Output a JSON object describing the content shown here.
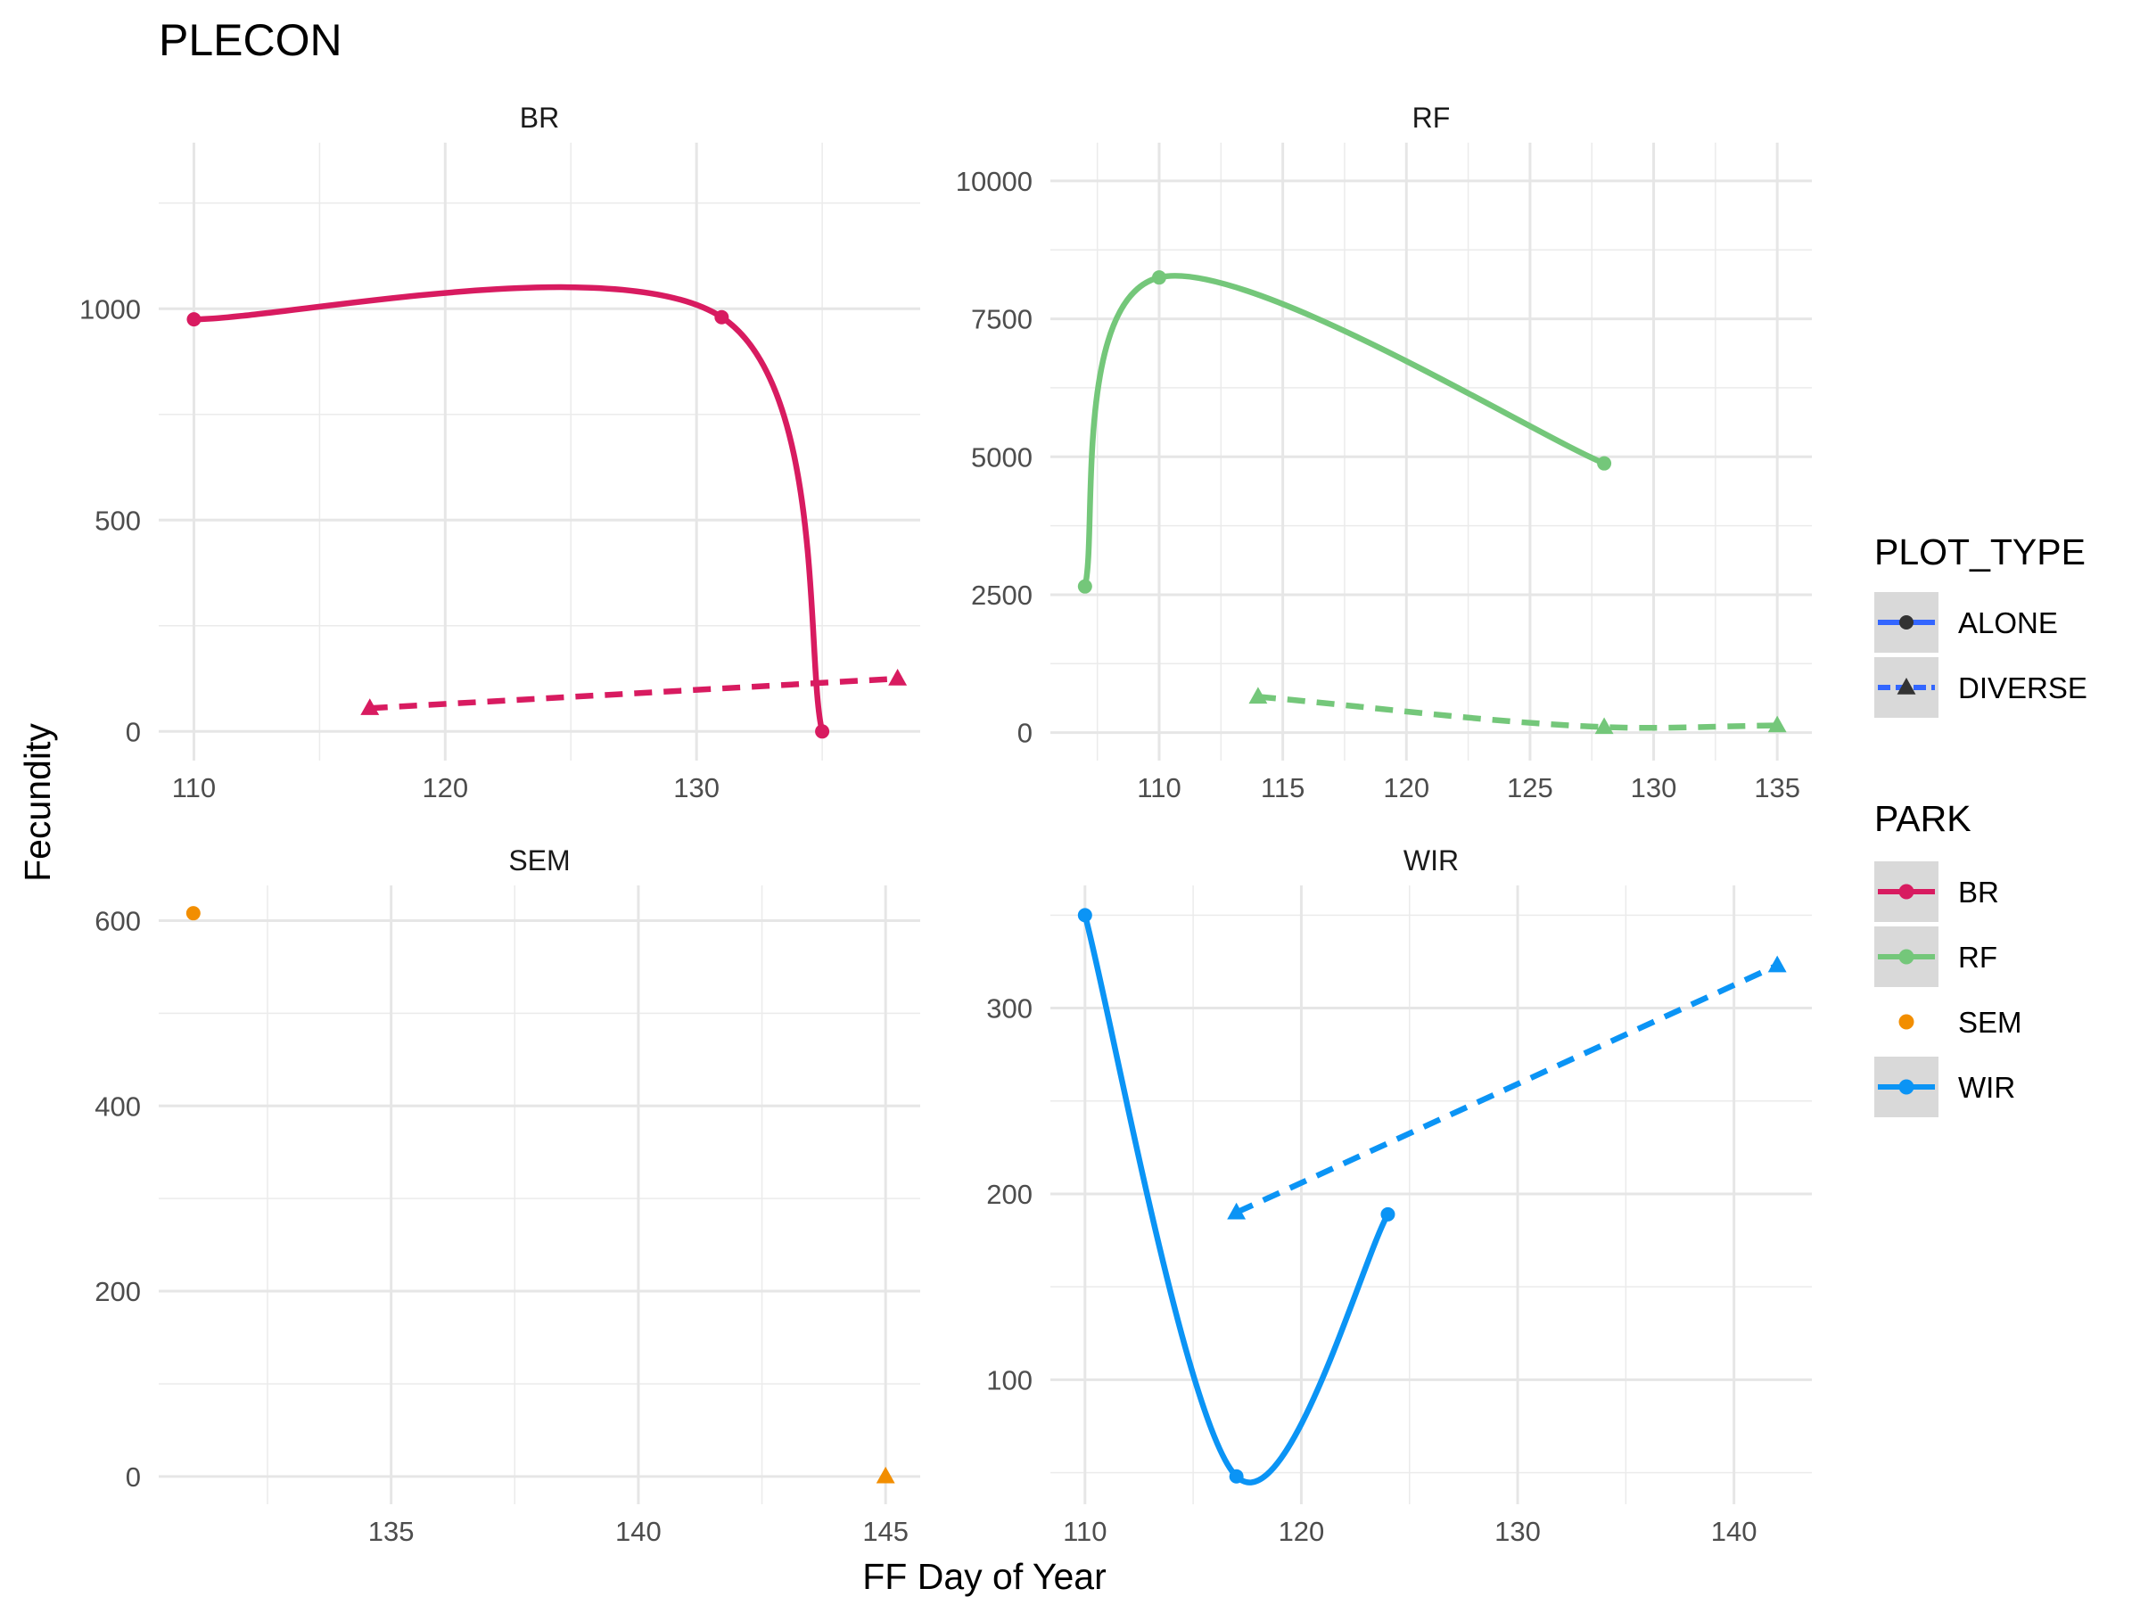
{
  "chart_data": {
    "type": "line",
    "title": "PLECON",
    "xlabel": "FF Day of Year",
    "ylabel": "Fecundity",
    "grid": true,
    "facets": [
      {
        "name": "BR",
        "xlim": [
          108.6,
          138.9
        ],
        "ylim": [
          -69,
          1393
        ],
        "x_major_ticks": [
          110,
          120,
          130
        ],
        "x_minor_ticks": [
          115,
          125,
          135
        ],
        "y_major_ticks": [
          0,
          500,
          1000
        ],
        "y_minor_ticks": [
          250,
          750,
          1250
        ],
        "series": [
          {
            "plot_type": "ALONE",
            "park": "BR",
            "color": "#d81b60",
            "smooth": true,
            "points": [
              [
                110,
                975
              ],
              [
                131,
                980
              ],
              [
                135,
                0
              ]
            ]
          },
          {
            "plot_type": "DIVERSE",
            "park": "BR",
            "color": "#d81b60",
            "smooth": true,
            "points": [
              [
                117,
                55
              ],
              [
                138,
                125
              ]
            ]
          }
        ]
      },
      {
        "name": "RF",
        "xlim": [
          105.6,
          136.4
        ],
        "ylim": [
          -507,
          10693
        ],
        "x_major_ticks": [
          110,
          115,
          120,
          125,
          130,
          135
        ],
        "x_minor_ticks": [
          107.5,
          112.5,
          117.5,
          122.5,
          127.5,
          132.5
        ],
        "y_major_ticks": [
          0,
          2500,
          5000,
          7500,
          10000
        ],
        "y_minor_ticks": [
          1250,
          3750,
          6250,
          8750
        ],
        "series": [
          {
            "plot_type": "ALONE",
            "park": "RF",
            "color": "#74c77a",
            "smooth": true,
            "points": [
              [
                107,
                2650
              ],
              [
                110,
                8250
              ],
              [
                128,
                4880
              ]
            ]
          },
          {
            "plot_type": "DIVERSE",
            "park": "RF",
            "color": "#74c77a",
            "smooth": true,
            "points": [
              [
                114,
                650
              ],
              [
                128,
                100
              ],
              [
                135,
                130
              ]
            ]
          }
        ]
      },
      {
        "name": "SEM",
        "xlim": [
          130.3,
          145.7
        ],
        "ylim": [
          -30,
          638
        ],
        "x_major_ticks": [
          135,
          140,
          145
        ],
        "x_minor_ticks": [
          132.5,
          137.5,
          142.5
        ],
        "y_major_ticks": [
          0,
          200,
          400,
          600
        ],
        "y_minor_ticks": [
          100,
          300,
          500
        ],
        "series": [
          {
            "plot_type": "ALONE",
            "park": "SEM",
            "color": "#f28e00",
            "smooth": false,
            "points": [
              [
                131,
                608
              ]
            ]
          },
          {
            "plot_type": "DIVERSE",
            "park": "SEM",
            "color": "#f28e00",
            "smooth": false,
            "points": [
              [
                145,
                0
              ]
            ]
          }
        ]
      },
      {
        "name": "WIR",
        "xlim": [
          108.4,
          143.6
        ],
        "ylim": [
          33,
          366
        ],
        "x_major_ticks": [
          110,
          120,
          130,
          140
        ],
        "x_minor_ticks": [
          115,
          125,
          135
        ],
        "y_major_ticks": [
          100,
          200,
          300
        ],
        "y_minor_ticks": [
          50,
          150,
          250,
          350
        ],
        "series": [
          {
            "plot_type": "ALONE",
            "park": "WIR",
            "color": "#0b94f5",
            "smooth": true,
            "points": [
              [
                110,
                350
              ],
              [
                117,
                48
              ],
              [
                124,
                189
              ]
            ]
          },
          {
            "plot_type": "DIVERSE",
            "park": "WIR",
            "color": "#0b94f5",
            "smooth": true,
            "points": [
              [
                117,
                190
              ],
              [
                142,
                323
              ]
            ]
          }
        ]
      }
    ],
    "legend": {
      "placement": "right",
      "plot_type": {
        "title": "PLOT_TYPE",
        "entries": [
          {
            "label": "ALONE",
            "shape": "circle",
            "dash": "solid",
            "color": "#3366ff"
          },
          {
            "label": "DIVERSE",
            "shape": "triangle",
            "dash": "dashed",
            "color": "#3366ff"
          }
        ]
      },
      "park": {
        "title": "PARK",
        "entries": [
          {
            "label": "BR",
            "color": "#d81b60",
            "line": true
          },
          {
            "label": "RF",
            "color": "#74c77a",
            "line": true
          },
          {
            "label": "SEM",
            "color": "#f28e00",
            "line": false
          },
          {
            "label": "WIR",
            "color": "#0b94f5",
            "line": true
          }
        ]
      }
    }
  }
}
